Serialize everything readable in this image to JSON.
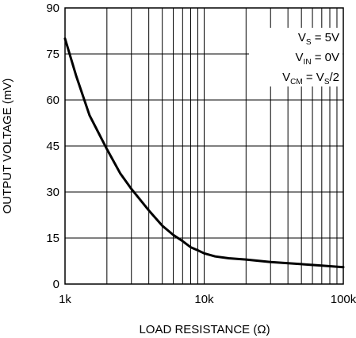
{
  "chart_data": {
    "type": "line",
    "title": "",
    "xlabel": "LOAD RESISTANCE (Ω)",
    "ylabel": "OUTPUT VOLTAGE (mV)",
    "x_scale": "log",
    "xlim": [
      1000,
      100000
    ],
    "ylim": [
      0,
      90
    ],
    "x_ticks": [
      1000,
      10000,
      100000
    ],
    "x_tick_labels": [
      "1k",
      "10k",
      "100k"
    ],
    "y_ticks": [
      0,
      15,
      30,
      45,
      60,
      75,
      90
    ],
    "y_tick_labels": [
      "0",
      "15",
      "30",
      "45",
      "60",
      "75",
      "90"
    ],
    "grid": true,
    "annotations": [
      {
        "main": "V",
        "sub": "S",
        "rest": " = 5V"
      },
      {
        "main": "V",
        "sub": "IN",
        "rest": " = 0V"
      },
      {
        "main": "V",
        "sub": "CM",
        "rest": " = V",
        "sub2": "S",
        "rest2": "/2"
      }
    ],
    "series": [
      {
        "x": [
          1000,
          1200,
          1500,
          2000,
          2500,
          3000,
          4000,
          5000,
          6000,
          7000,
          8000,
          9000,
          10000,
          12000,
          15000,
          20000,
          30000,
          50000,
          70000,
          100000
        ],
        "y": [
          80,
          68,
          55,
          44,
          36,
          31,
          24,
          19,
          16,
          14,
          12,
          11,
          10,
          9,
          8.4,
          8,
          7.2,
          6.5,
          6,
          5.5
        ]
      }
    ]
  }
}
